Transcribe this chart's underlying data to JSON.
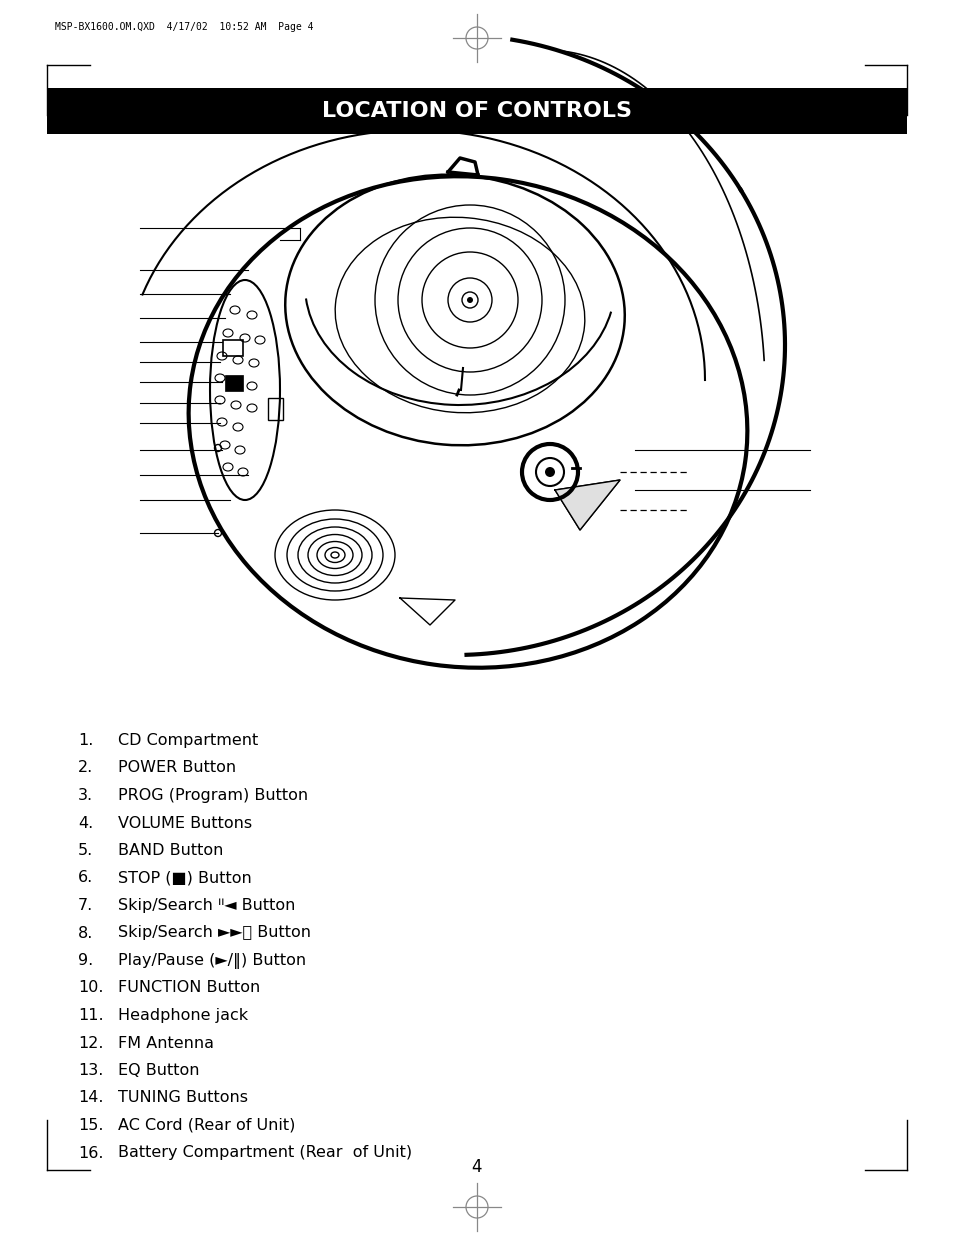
{
  "title": "LOCATION OF CONTROLS",
  "title_bg": "#000000",
  "title_fg": "#ffffff",
  "header_text": "MSP-BX1600.OM.QXD  4/17/02  10:52 AM  Page 4",
  "page_number": "4",
  "bg_color": "#ffffff"
}
